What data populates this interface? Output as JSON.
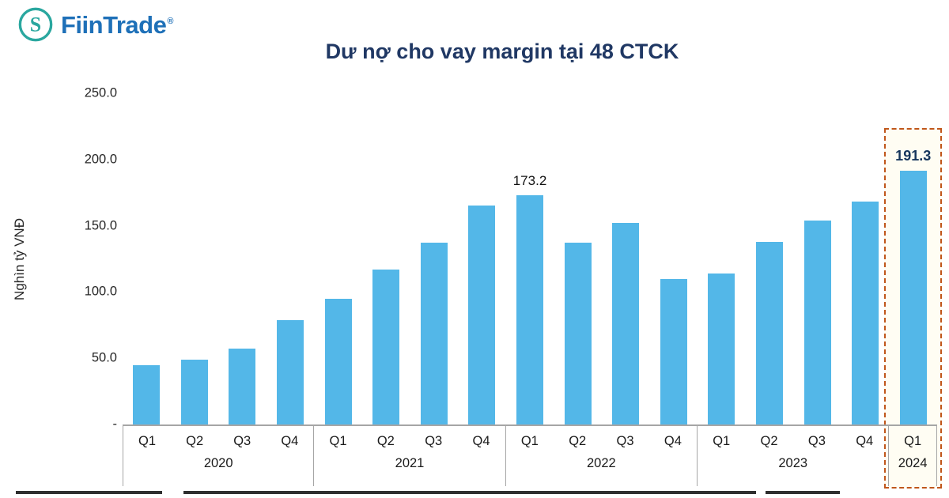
{
  "brand": {
    "name": "FiinTrade",
    "registered": "®",
    "icon": "fiintrade-s-logo",
    "teal": "#2AA79F",
    "blue": "#1E70B8"
  },
  "chart_data": {
    "type": "bar",
    "title": "Dư nợ cho vay margin tại 48 CTCK",
    "ylabel": "Nghìn tỷ VNĐ",
    "ylim": [
      0,
      250
    ],
    "bar_color": "#53B7E8",
    "grid": false,
    "yticks": [
      {
        "value": 250,
        "label": "250.0"
      },
      {
        "value": 200,
        "label": "200.0"
      },
      {
        "value": 150,
        "label": "150.0"
      },
      {
        "value": 100,
        "label": "100.0"
      },
      {
        "value": 50,
        "label": "50.0"
      },
      {
        "value": 0,
        "label": "-"
      }
    ],
    "groups": [
      {
        "year": "2020",
        "quarters": [
          "Q1",
          "Q2",
          "Q3",
          "Q4"
        ],
        "values": [
          45,
          49,
          57,
          79
        ]
      },
      {
        "year": "2021",
        "quarters": [
          "Q1",
          "Q2",
          "Q3",
          "Q4"
        ],
        "values": [
          95,
          117,
          137,
          165
        ]
      },
      {
        "year": "2022",
        "quarters": [
          "Q1",
          "Q2",
          "Q3",
          "Q4"
        ],
        "values": [
          173.2,
          137,
          152,
          110
        ]
      },
      {
        "year": "2023",
        "quarters": [
          "Q1",
          "Q2",
          "Q3",
          "Q4"
        ],
        "values": [
          114,
          138,
          154,
          168
        ]
      },
      {
        "year": "2024",
        "quarters": [
          "Q1"
        ],
        "values": [
          191.3
        ]
      }
    ],
    "data_labels": [
      {
        "group": 2,
        "index": 0,
        "text": "173.2",
        "bold": false
      },
      {
        "group": 4,
        "index": 0,
        "text": "191.3",
        "bold": true
      }
    ],
    "highlight": {
      "group": 4,
      "index": 0,
      "border_color": "#C0571B"
    }
  }
}
